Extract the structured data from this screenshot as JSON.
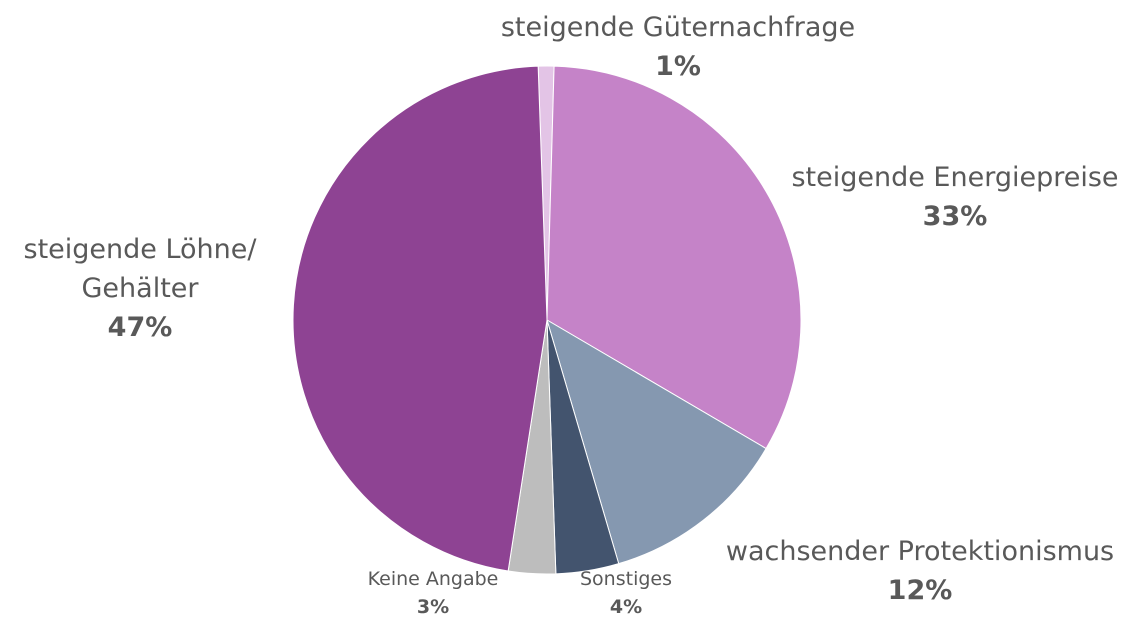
{
  "chart_data": {
    "type": "pie",
    "categories": [
      "steigende Güternachfrage",
      "steigende Energiepreise",
      "wachsender Protektionismus",
      "Sonstiges",
      "Keine Angabe",
      "steigende Löhne/ Gehälter"
    ],
    "values": [
      1,
      33,
      12,
      4,
      3,
      47
    ],
    "value_labels": [
      "1%",
      "33%",
      "12%",
      "4%",
      "3%",
      "47%"
    ],
    "colors": [
      "#e3c4e6",
      "#c583c8",
      "#8598b0",
      "#43546e",
      "#bdbdbd",
      "#8e4393"
    ]
  }
}
